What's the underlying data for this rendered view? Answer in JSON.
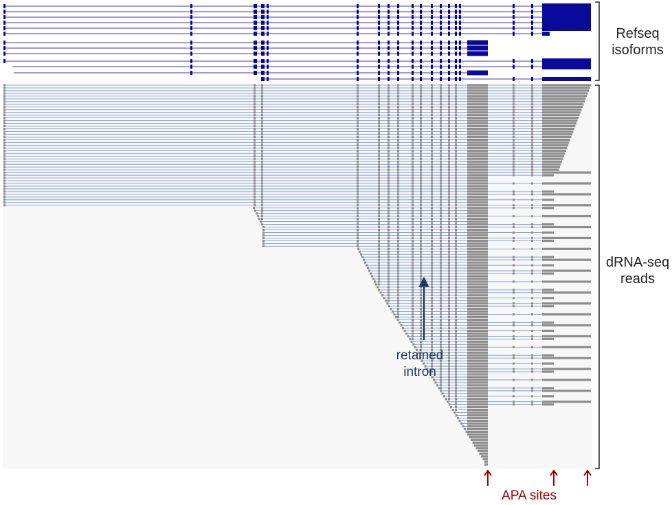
{
  "figure": {
    "labels": {
      "refseq_isoforms": "Refseq\nisoforms",
      "drna_seq_reads": "dRNA-seq\nreads",
      "retained_intron": "retained\nintron",
      "apa_sites": "APA sites"
    },
    "colors": {
      "isoform": "#0a0a9a",
      "isoform_line": "#3a3ab0",
      "read_block": "#8c8c8c",
      "read_line": "#6f8ec7",
      "track_bg": "#f7f7f7",
      "bracket": "#222222",
      "retained_arrow": "#1f3864",
      "apa_arrow": "#a00000"
    }
  }
}
